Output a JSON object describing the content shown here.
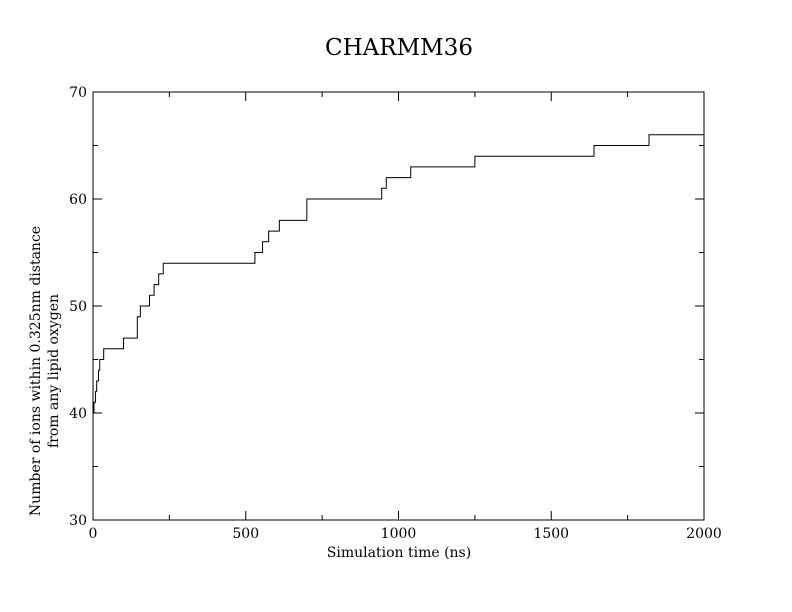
{
  "chart_data": {
    "type": "line",
    "title": "CHARMM36",
    "xlabel": "Simulation time (ns)",
    "ylabel_lines": [
      "Number of ions within 0.325nm distance",
      "from any lipid oxygen"
    ],
    "xlim": [
      0,
      2000
    ],
    "ylim": [
      30,
      70
    ],
    "x_ticks": [
      0,
      500,
      1000,
      1500,
      2000
    ],
    "x_minor_ticks": [
      250,
      750,
      1250,
      1750
    ],
    "y_ticks": [
      30,
      40,
      50,
      60,
      70
    ],
    "y_minor_ticks": [
      35,
      45,
      55,
      65
    ],
    "grid": false,
    "legend": "none",
    "line_color": "#000000",
    "step": "post",
    "series": [
      {
        "x": [
          0,
          3,
          8,
          12,
          18,
          22,
          35,
          100,
          140,
          145,
          155,
          175,
          185,
          200,
          210,
          215,
          230,
          500,
          530,
          555,
          575,
          610,
          700,
          930,
          945,
          960,
          1000,
          1040,
          1100,
          1250,
          1300,
          1640,
          1700,
          1820,
          1900,
          2000
        ],
        "y": [
          40,
          41,
          42,
          43,
          44,
          45,
          46,
          47,
          47,
          49,
          50,
          50,
          51,
          52,
          52,
          53,
          54,
          54,
          55,
          56,
          57,
          58,
          60,
          60,
          61,
          62,
          62,
          63,
          63,
          64,
          64,
          65,
          65,
          66,
          66,
          66
        ]
      }
    ]
  }
}
